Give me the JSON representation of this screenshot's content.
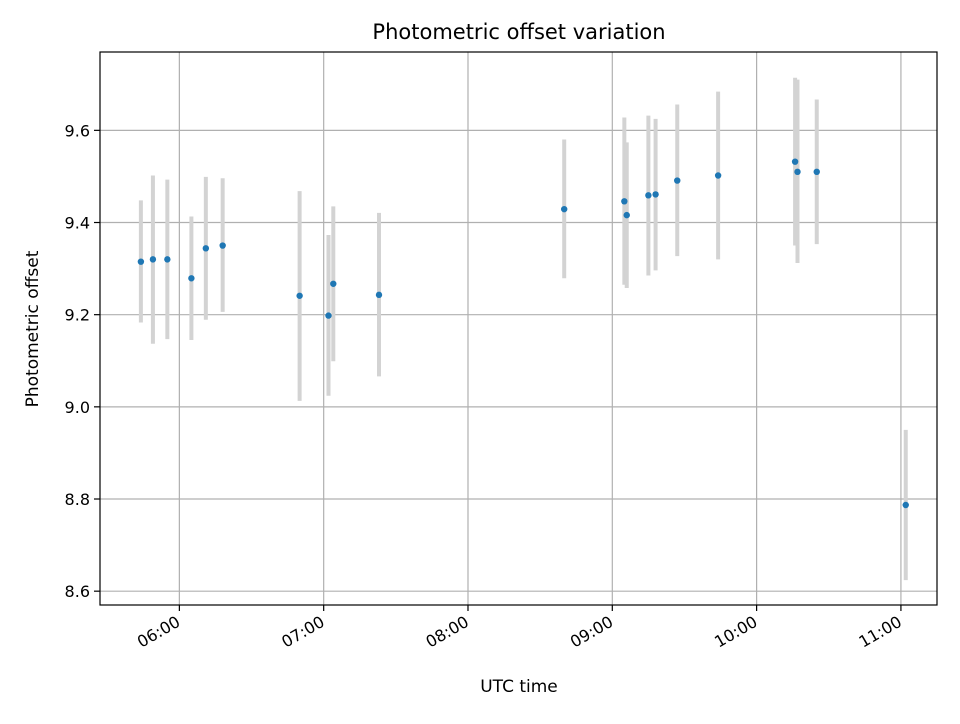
{
  "chart_data": {
    "type": "scatter",
    "title": "Photometric offset variation",
    "xlabel": "UTC time",
    "ylabel": "Photometric offset",
    "x_unit": "UTC time (hours)",
    "xlim": [
      "05:27",
      "11:15"
    ],
    "ylim": [
      8.57,
      9.77
    ],
    "x_ticks": [
      "06:00",
      "07:00",
      "08:00",
      "09:00",
      "10:00",
      "11:00"
    ],
    "y_ticks": [
      8.6,
      8.8,
      9.0,
      9.2,
      9.4,
      9.6
    ],
    "grid": true,
    "point_color": "#1f77b4",
    "errorbar_color": "#d3d3d3",
    "points": [
      {
        "x": "05:44",
        "y": 9.315,
        "err_low": 9.183,
        "err_high": 9.448
      },
      {
        "x": "05:49",
        "y": 9.32,
        "err_low": 9.137,
        "err_high": 9.502
      },
      {
        "x": "05:55",
        "y": 9.32,
        "err_low": 9.147,
        "err_high": 9.493
      },
      {
        "x": "06:05",
        "y": 9.279,
        "err_low": 9.145,
        "err_high": 9.413
      },
      {
        "x": "06:11",
        "y": 9.344,
        "err_low": 9.189,
        "err_high": 9.499
      },
      {
        "x": "06:18",
        "y": 9.35,
        "err_low": 9.206,
        "err_high": 9.496
      },
      {
        "x": "06:50",
        "y": 9.241,
        "err_low": 9.013,
        "err_high": 9.468
      },
      {
        "x": "07:02",
        "y": 9.198,
        "err_low": 9.024,
        "err_high": 9.373
      },
      {
        "x": "07:04",
        "y": 9.267,
        "err_low": 9.099,
        "err_high": 9.435
      },
      {
        "x": "07:23",
        "y": 9.243,
        "err_low": 9.066,
        "err_high": 9.421
      },
      {
        "x": "08:40",
        "y": 9.429,
        "err_low": 9.279,
        "err_high": 9.58
      },
      {
        "x": "09:05",
        "y": 9.446,
        "err_low": 9.265,
        "err_high": 9.628
      },
      {
        "x": "09:06",
        "y": 9.416,
        "err_low": 9.258,
        "err_high": 9.574
      },
      {
        "x": "09:15",
        "y": 9.459,
        "err_low": 9.285,
        "err_high": 9.632
      },
      {
        "x": "09:18",
        "y": 9.461,
        "err_low": 9.296,
        "err_high": 9.625
      },
      {
        "x": "09:27",
        "y": 9.491,
        "err_low": 9.327,
        "err_high": 9.656
      },
      {
        "x": "09:44",
        "y": 9.502,
        "err_low": 9.32,
        "err_high": 9.684
      },
      {
        "x": "10:16",
        "y": 9.532,
        "err_low": 9.35,
        "err_high": 9.714
      },
      {
        "x": "10:17",
        "y": 9.51,
        "err_low": 9.312,
        "err_high": 9.71
      },
      {
        "x": "10:25",
        "y": 9.51,
        "err_low": 9.353,
        "err_high": 9.667
      },
      {
        "x": "11:02",
        "y": 8.787,
        "err_low": 8.624,
        "err_high": 8.95
      }
    ]
  }
}
